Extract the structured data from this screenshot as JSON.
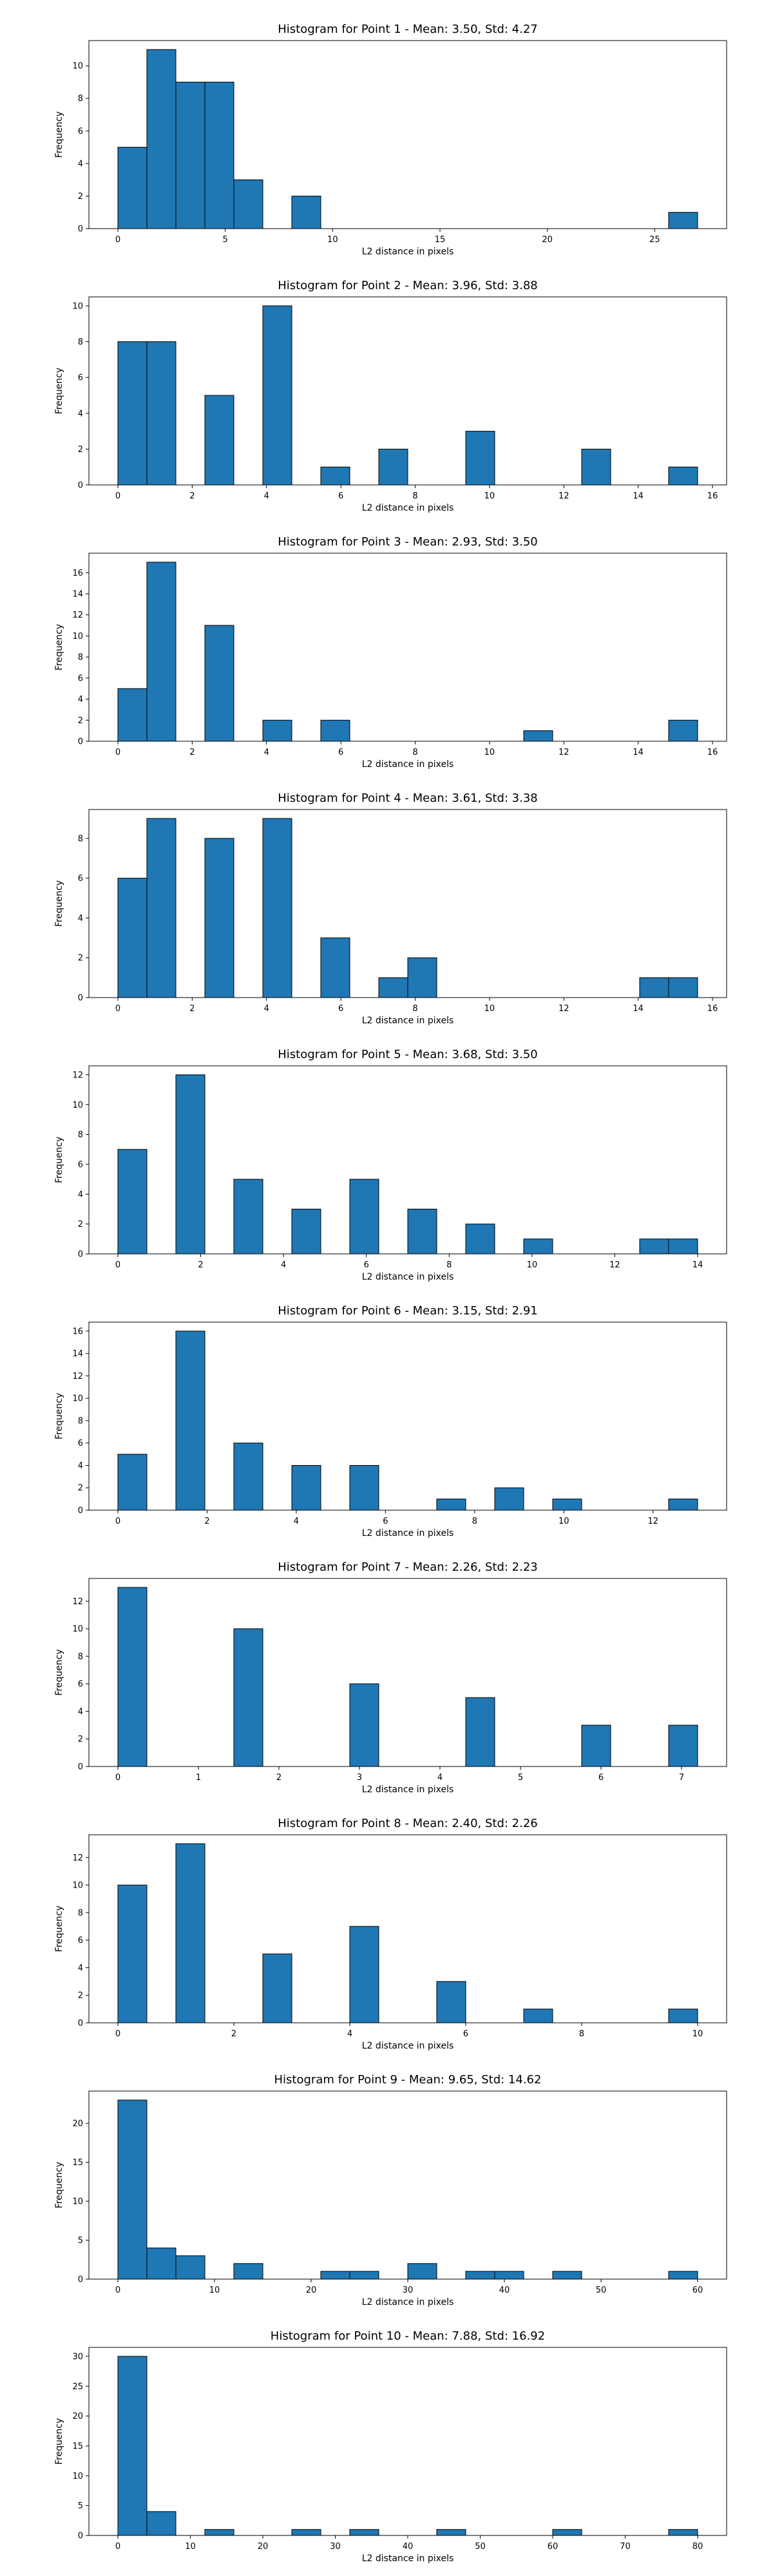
{
  "chart_data": [
    {
      "type": "bar",
      "title": "Histogram for Point 1 - Mean: 3.50, Std: 4.27",
      "xlabel": "L2 distance in pixels",
      "ylabel": "Frequency",
      "xlim": [
        -1.35,
        28.35
      ],
      "ylim": [
        0,
        11.55
      ],
      "xticks": [
        0,
        5,
        10,
        15,
        20,
        25
      ],
      "yticks": [
        0,
        2,
        4,
        6,
        8,
        10
      ],
      "bin_edges": [
        0,
        1.35,
        2.7,
        4.05,
        5.4,
        6.75,
        8.1,
        9.45,
        10.8,
        12.15,
        13.5,
        14.85,
        16.2,
        17.55,
        18.9,
        20.25,
        21.6,
        22.95,
        24.3,
        25.65,
        27.0
      ],
      "counts": [
        5,
        11,
        9,
        9,
        3,
        0,
        2,
        0,
        0,
        0,
        0,
        0,
        0,
        0,
        0,
        0,
        0,
        0,
        0,
        1
      ],
      "bar_color": "#1f77b4",
      "grid": false
    },
    {
      "type": "bar",
      "title": "Histogram for Point 2 - Mean: 3.96, Std: 3.88",
      "xlabel": "L2 distance in pixels",
      "ylabel": "Frequency",
      "xlim": [
        -0.78,
        16.38
      ],
      "ylim": [
        0,
        10.5
      ],
      "xticks": [
        0,
        2,
        4,
        6,
        8,
        10,
        12,
        14,
        16
      ],
      "yticks": [
        0,
        2,
        4,
        6,
        8,
        10
      ],
      "bin_edges": [
        0,
        0.78,
        1.56,
        2.34,
        3.12,
        3.9,
        4.68,
        5.46,
        6.24,
        7.02,
        7.8,
        8.58,
        9.36,
        10.14,
        10.92,
        11.7,
        12.48,
        13.26,
        14.04,
        14.82,
        15.6
      ],
      "counts": [
        8,
        8,
        0,
        5,
        0,
        10,
        0,
        1,
        0,
        2,
        0,
        0,
        3,
        0,
        0,
        0,
        2,
        0,
        0,
        1
      ],
      "bar_color": "#1f77b4",
      "grid": false
    },
    {
      "type": "bar",
      "title": "Histogram for Point 3 - Mean: 2.93, Std: 3.50",
      "xlabel": "L2 distance in pixels",
      "ylabel": "Frequency",
      "xlim": [
        -0.78,
        16.38
      ],
      "ylim": [
        0,
        17.85
      ],
      "xticks": [
        0,
        2,
        4,
        6,
        8,
        10,
        12,
        14,
        16
      ],
      "yticks": [
        0,
        2,
        4,
        6,
        8,
        10,
        12,
        14,
        16
      ],
      "bin_edges": [
        0,
        0.78,
        1.56,
        2.34,
        3.12,
        3.9,
        4.68,
        5.46,
        6.24,
        7.02,
        7.8,
        8.58,
        9.36,
        10.14,
        10.92,
        11.7,
        12.48,
        13.26,
        14.04,
        14.82,
        15.6
      ],
      "counts": [
        5,
        17,
        0,
        11,
        0,
        2,
        0,
        2,
        0,
        0,
        0,
        0,
        0,
        0,
        1,
        0,
        0,
        0,
        0,
        2
      ],
      "bar_color": "#1f77b4",
      "grid": false
    },
    {
      "type": "bar",
      "title": "Histogram for Point 4 - Mean: 3.61, Std: 3.38",
      "xlabel": "L2 distance in pixels",
      "ylabel": "Frequency",
      "xlim": [
        -0.78,
        16.38
      ],
      "ylim": [
        0,
        9.45
      ],
      "xticks": [
        0,
        2,
        4,
        6,
        8,
        10,
        12,
        14,
        16
      ],
      "yticks": [
        0,
        2,
        4,
        6,
        8
      ],
      "bin_edges": [
        0,
        0.78,
        1.56,
        2.34,
        3.12,
        3.9,
        4.68,
        5.46,
        6.24,
        7.02,
        7.8,
        8.58,
        9.36,
        10.14,
        10.92,
        11.7,
        12.48,
        13.26,
        14.04,
        14.82,
        15.6
      ],
      "counts": [
        6,
        9,
        0,
        8,
        0,
        9,
        0,
        3,
        0,
        1,
        2,
        0,
        0,
        0,
        0,
        0,
        0,
        0,
        1,
        1
      ],
      "bar_color": "#1f77b4",
      "grid": false
    },
    {
      "type": "bar",
      "title": "Histogram for Point 5 - Mean: 3.68, Std: 3.50",
      "xlabel": "L2 distance in pixels",
      "ylabel": "Frequency",
      "xlim": [
        -0.7,
        14.7
      ],
      "ylim": [
        0,
        12.6
      ],
      "xticks": [
        0,
        2,
        4,
        6,
        8,
        10,
        12,
        14
      ],
      "yticks": [
        0,
        2,
        4,
        6,
        8,
        10,
        12
      ],
      "bin_edges": [
        0,
        0.7,
        1.4,
        2.1,
        2.8,
        3.5,
        4.2,
        4.9,
        5.6,
        6.3,
        7.0,
        7.7,
        8.4,
        9.1,
        9.8,
        10.5,
        11.2,
        11.9,
        12.6,
        13.3,
        14.0
      ],
      "counts": [
        7,
        0,
        12,
        0,
        5,
        0,
        3,
        0,
        5,
        0,
        3,
        0,
        2,
        0,
        1,
        0,
        0,
        0,
        1,
        1
      ],
      "bar_color": "#1f77b4",
      "grid": false
    },
    {
      "type": "bar",
      "title": "Histogram for Point 6 - Mean: 3.15, Std: 2.91",
      "xlabel": "L2 distance in pixels",
      "ylabel": "Frequency",
      "xlim": [
        -0.65,
        13.65
      ],
      "ylim": [
        0,
        16.8
      ],
      "xticks": [
        0,
        2,
        4,
        6,
        8,
        10,
        12
      ],
      "yticks": [
        0,
        2,
        4,
        6,
        8,
        10,
        12,
        14,
        16
      ],
      "bin_edges": [
        0,
        0.65,
        1.3,
        1.95,
        2.6,
        3.25,
        3.9,
        4.55,
        5.2,
        5.85,
        6.5,
        7.15,
        7.8,
        8.45,
        9.1,
        9.75,
        10.4,
        11.05,
        11.7,
        12.35,
        13.0
      ],
      "counts": [
        5,
        0,
        16,
        0,
        6,
        0,
        4,
        0,
        4,
        0,
        0,
        1,
        0,
        2,
        0,
        1,
        0,
        0,
        0,
        1
      ],
      "bar_color": "#1f77b4",
      "grid": false
    },
    {
      "type": "bar",
      "title": "Histogram for Point 7 - Mean: 2.26, Std: 2.23",
      "xlabel": "L2 distance in pixels",
      "ylabel": "Frequency",
      "xlim": [
        -0.36,
        7.56
      ],
      "ylim": [
        0,
        13.65
      ],
      "xticks": [
        0,
        1,
        2,
        3,
        4,
        5,
        6,
        7
      ],
      "yticks": [
        0,
        2,
        4,
        6,
        8,
        10,
        12
      ],
      "bin_edges": [
        0,
        0.36,
        0.72,
        1.08,
        1.44,
        1.8,
        2.16,
        2.52,
        2.88,
        3.24,
        3.6,
        3.96,
        4.32,
        4.68,
        5.04,
        5.4,
        5.76,
        6.12,
        6.48,
        6.84,
        7.2
      ],
      "counts": [
        13,
        0,
        0,
        0,
        10,
        0,
        0,
        0,
        6,
        0,
        0,
        0,
        5,
        0,
        0,
        0,
        3,
        0,
        0,
        3
      ],
      "bar_color": "#1f77b4",
      "grid": false
    },
    {
      "type": "bar",
      "title": "Histogram for Point 8 - Mean: 2.40, Std: 2.26",
      "xlabel": "L2 distance in pixels",
      "ylabel": "Frequency",
      "xlim": [
        -0.5,
        10.5
      ],
      "ylim": [
        0,
        13.65
      ],
      "xticks": [
        0,
        2,
        4,
        6,
        8,
        10
      ],
      "yticks": [
        0,
        2,
        4,
        6,
        8,
        10,
        12
      ],
      "bin_edges": [
        0,
        0.5,
        1.0,
        1.5,
        2.0,
        2.5,
        3.0,
        3.5,
        4.0,
        4.5,
        5.0,
        5.5,
        6.0,
        6.5,
        7.0,
        7.5,
        8.0,
        8.5,
        9.0,
        9.5,
        10.0
      ],
      "counts": [
        10,
        0,
        13,
        0,
        0,
        5,
        0,
        0,
        7,
        0,
        0,
        3,
        0,
        0,
        1,
        0,
        0,
        0,
        0,
        1
      ],
      "bar_color": "#1f77b4",
      "grid": false
    },
    {
      "type": "bar",
      "title": "Histogram for Point 9 - Mean: 9.65, Std: 14.62",
      "xlabel": "L2 distance in pixels",
      "ylabel": "Frequency",
      "xlim": [
        -3.0,
        63.0
      ],
      "ylim": [
        0,
        24.15
      ],
      "xticks": [
        0,
        10,
        20,
        30,
        40,
        50,
        60
      ],
      "yticks": [
        0,
        5,
        10,
        15,
        20
      ],
      "bin_edges": [
        0,
        3,
        6,
        9,
        12,
        15,
        18,
        21,
        24,
        27,
        30,
        33,
        36,
        39,
        42,
        45,
        48,
        51,
        54,
        57,
        60
      ],
      "counts": [
        23,
        4,
        3,
        0,
        2,
        0,
        0,
        1,
        1,
        0,
        2,
        0,
        1,
        1,
        0,
        1,
        0,
        0,
        0,
        1
      ],
      "bar_color": "#1f77b4",
      "grid": false
    },
    {
      "type": "bar",
      "title": "Histogram for Point 10 - Mean: 7.88, Std: 16.92",
      "xlabel": "L2 distance in pixels",
      "ylabel": "Frequency",
      "xlim": [
        -4.0,
        84.0
      ],
      "ylim": [
        0,
        31.5
      ],
      "xticks": [
        0,
        10,
        20,
        30,
        40,
        50,
        60,
        70,
        80
      ],
      "yticks": [
        0,
        5,
        10,
        15,
        20,
        25,
        30
      ],
      "bin_edges": [
        0,
        4,
        8,
        12,
        16,
        20,
        24,
        28,
        32,
        36,
        40,
        44,
        48,
        52,
        56,
        60,
        64,
        68,
        72,
        76,
        80
      ],
      "counts": [
        30,
        4,
        0,
        1,
        0,
        0,
        1,
        0,
        1,
        0,
        0,
        1,
        0,
        0,
        0,
        1,
        0,
        0,
        0,
        1
      ],
      "bar_color": "#1f77b4",
      "grid": false
    }
  ]
}
